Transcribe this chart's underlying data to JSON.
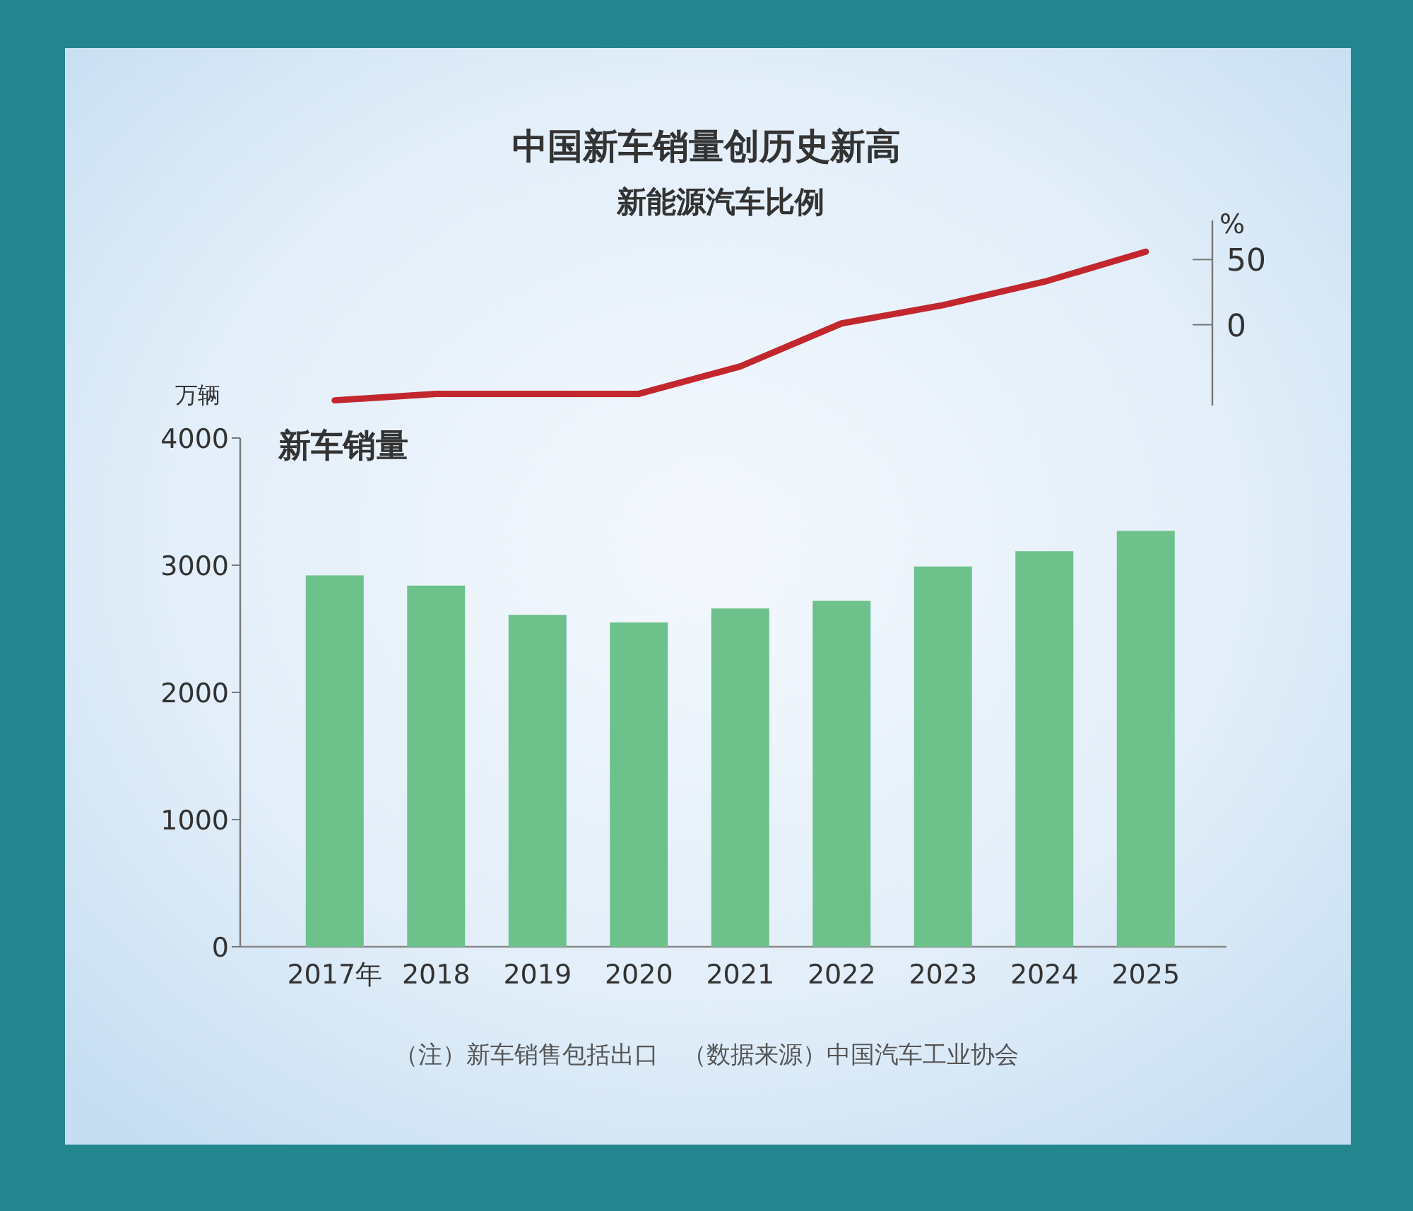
{
  "chart_data": [
    {
      "type": "line",
      "title": "中国新车销量创历史新高",
      "ylabel": "%",
      "tick_labels": "y",
      "categories": [
        null,
        null,
        null,
        null,
        null,
        null,
        null,
        null,
        null
      ],
      "series": [
        {
          "name": "新能源汽车比例",
          "color": "#c1272d",
          "values": [
            -58,
            -53,
            -53,
            -53,
            -32,
            1,
            15,
            33,
            56
          ]
        }
      ],
      "ylim": [
        -62,
        80
      ],
      "yticks": [
        0,
        50
      ],
      "grid": false,
      "legend": false
    },
    {
      "type": "bar",
      "ylabel": "万辆",
      "categories": [
        "2017年",
        "2018",
        "2019",
        "2020",
        "2021",
        "2022",
        "2023",
        "2024",
        "2025"
      ],
      "series": [
        {
          "name": "新车销量",
          "color": "#6dc18a",
          "values": [
            2920,
            2840,
            2610,
            2550,
            2660,
            2720,
            2990,
            3110,
            3270
          ]
        }
      ],
      "ylim": [
        0,
        4000
      ],
      "yticks": [
        0,
        1000,
        2000,
        3000,
        4000
      ],
      "annotations": [
        "（注）新车销售包括出口　（数据来源）中国汽车工业协会"
      ],
      "grid": false,
      "legend": false
    }
  ]
}
